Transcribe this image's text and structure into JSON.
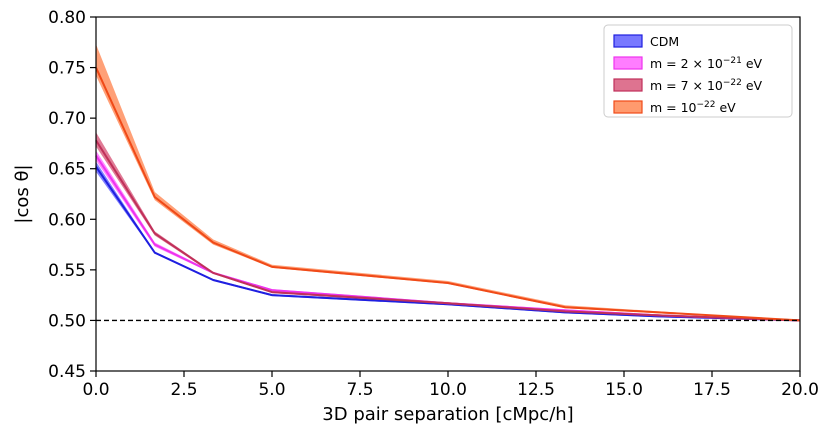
{
  "chart_data": {
    "type": "line",
    "xlabel": "3D pair separation [cMpc/h]",
    "ylabel": "|cos θ|",
    "xlim": [
      0,
      20
    ],
    "ylim": [
      0.45,
      0.8
    ],
    "x_ticks": [
      0.0,
      2.5,
      5.0,
      7.5,
      10.0,
      12.5,
      15.0,
      17.5,
      20.0
    ],
    "x_tick_labels": [
      "0.0",
      "2.5",
      "5.0",
      "7.5",
      "10.0",
      "12.5",
      "15.0",
      "17.5",
      "20.0"
    ],
    "y_ticks": [
      0.45,
      0.5,
      0.55,
      0.6,
      0.65,
      0.7,
      0.75,
      0.8
    ],
    "y_tick_labels": [
      "0.45",
      "0.50",
      "0.55",
      "0.60",
      "0.65",
      "0.70",
      "0.75",
      "0.80"
    ],
    "grid": false,
    "legend_position": "top-right",
    "reference_line": {
      "y": 0.5,
      "style": "dashed",
      "color": "#000000"
    },
    "x": [
      0.0,
      1.67,
      3.33,
      5.0,
      10.0,
      13.33,
      16.0,
      20.0
    ],
    "series": [
      {
        "name": "CDM",
        "line_color": "#1f1fe0",
        "fill_color": "#6060ff",
        "values": [
          0.652,
          0.567,
          0.54,
          0.525,
          0.516,
          0.508,
          0.504,
          0.5
        ],
        "lower": [
          0.647,
          0.566,
          0.539,
          0.524,
          0.515,
          0.507,
          0.503,
          0.5
        ],
        "upper": [
          0.657,
          0.568,
          0.541,
          0.526,
          0.517,
          0.509,
          0.505,
          0.5
        ]
      },
      {
        "name": "m = 2 × 10⁻²¹ eV",
        "line_color": "#ee33ee",
        "fill_color": "#ff66ff",
        "values": [
          0.663,
          0.575,
          0.547,
          0.53,
          0.517,
          0.51,
          0.505,
          0.5
        ],
        "lower": [
          0.658,
          0.573,
          0.546,
          0.529,
          0.516,
          0.509,
          0.504,
          0.5
        ],
        "upper": [
          0.668,
          0.577,
          0.548,
          0.531,
          0.518,
          0.511,
          0.506,
          0.5
        ]
      },
      {
        "name": "m = 7 × 10⁻²² eV",
        "line_color": "#c0305a",
        "fill_color": "#d85a7c",
        "values": [
          0.678,
          0.586,
          0.547,
          0.528,
          0.517,
          0.509,
          0.505,
          0.5
        ],
        "lower": [
          0.672,
          0.584,
          0.546,
          0.527,
          0.516,
          0.508,
          0.504,
          0.5
        ],
        "upper": [
          0.686,
          0.588,
          0.548,
          0.529,
          0.518,
          0.51,
          0.506,
          0.5
        ]
      },
      {
        "name": "m = 10⁻²² eV",
        "line_color": "#f04a18",
        "fill_color": "#ff8855",
        "values": [
          0.75,
          0.622,
          0.577,
          0.553,
          0.537,
          0.513,
          0.508,
          0.5
        ],
        "lower": [
          0.742,
          0.619,
          0.575,
          0.552,
          0.536,
          0.512,
          0.507,
          0.5
        ],
        "upper": [
          0.773,
          0.627,
          0.58,
          0.555,
          0.539,
          0.515,
          0.509,
          0.5
        ]
      }
    ],
    "legend": [
      {
        "label_pre": "CDM",
        "label_exp": "",
        "label_post": ""
      },
      {
        "label_pre": "m = 2 × 10",
        "label_exp": "−21",
        "label_post": " eV"
      },
      {
        "label_pre": "m = 7 × 10",
        "label_exp": "−22",
        "label_post": " eV"
      },
      {
        "label_pre": "m = 10",
        "label_exp": "−22",
        "label_post": " eV"
      }
    ]
  }
}
